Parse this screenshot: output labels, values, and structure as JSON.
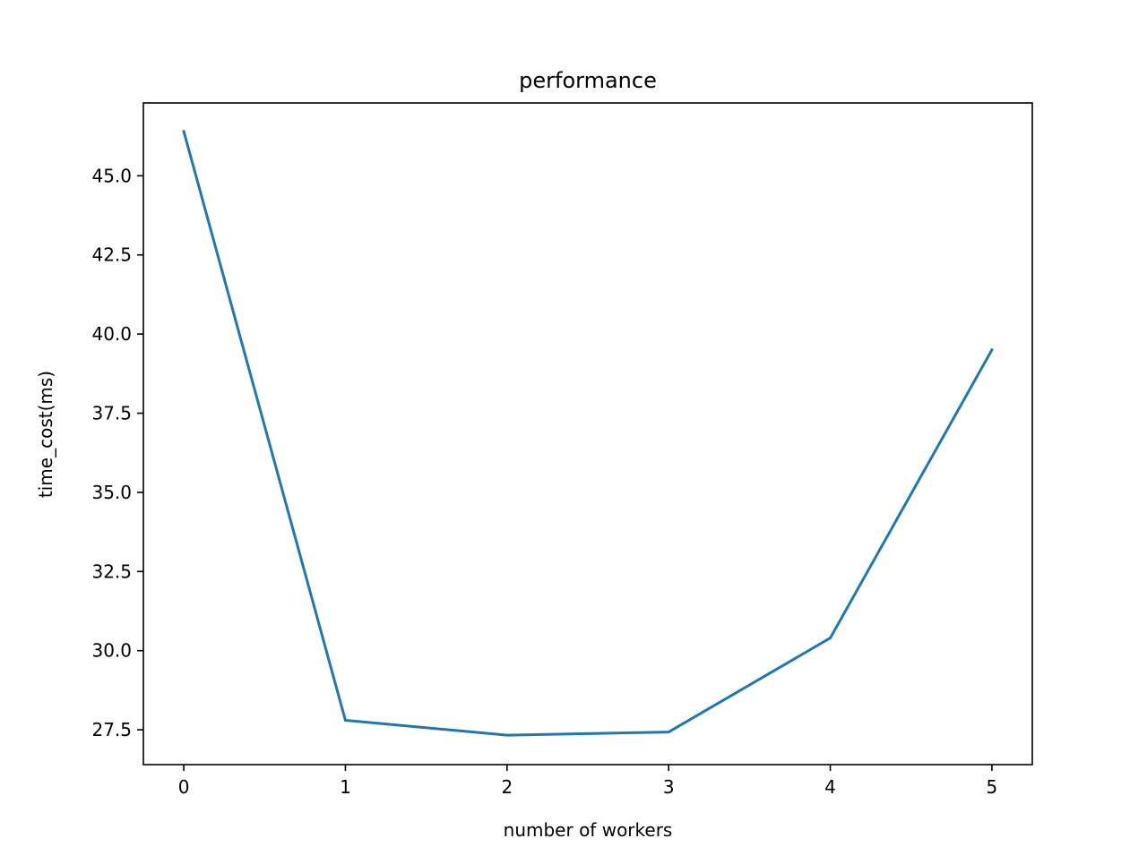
{
  "chart_data": {
    "type": "line",
    "title": "performance",
    "xlabel": "number of workers",
    "ylabel": "time_cost(ms)",
    "x": [
      0,
      1,
      2,
      3,
      4,
      5
    ],
    "series": [
      {
        "values": [
          46.4,
          27.8,
          27.33,
          27.43,
          30.4,
          39.5
        ]
      }
    ],
    "xlim": [
      -0.25,
      5.25
    ],
    "ylim": [
      26.4,
      47.3
    ],
    "xticks": [
      0,
      1,
      2,
      3,
      4,
      5
    ],
    "xtick_labels": [
      "0",
      "1",
      "2",
      "3",
      "4",
      "5"
    ],
    "yticks": [
      27.5,
      30.0,
      32.5,
      35.0,
      37.5,
      40.0,
      42.5,
      45.0
    ],
    "ytick_labels": [
      "27.5",
      "30.0",
      "32.5",
      "35.0",
      "37.5",
      "40.0",
      "42.5",
      "45.0"
    ],
    "grid": false,
    "legend": "none",
    "colors": {
      "line": "#1f77b4",
      "axes": "#000000"
    }
  }
}
